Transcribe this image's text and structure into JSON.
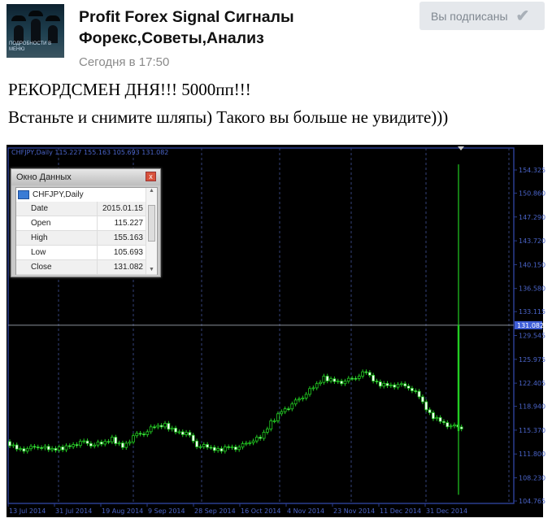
{
  "post": {
    "community_name": "Profit Forex Signal Сигналы Форекс,Советы,Анализ",
    "avatar_caption": "ПОДРОБНОСТИ В МЕНЮ",
    "timestamp": "Сегодня в 17:50",
    "subscribe_button": "Вы подписаны",
    "subscribe_icon": "checkmark-icon",
    "line1": "РЕКОРДСМЕН ДНЯ!!! 5000пп!!!",
    "line2": "Встаньте и снимите шляпы) Такого вы больше не увидите)))"
  },
  "data_window": {
    "title": "Окно Данных",
    "symbol": "CHFJPY,Daily",
    "rows": [
      {
        "k": "Date",
        "v": "2015.01.15"
      },
      {
        "k": "Open",
        "v": "115.227"
      },
      {
        "k": "High",
        "v": "155.163"
      },
      {
        "k": "Low",
        "v": "105.693"
      },
      {
        "k": "Close",
        "v": "131.082"
      }
    ]
  },
  "chart_data": {
    "type": "candlestick",
    "header": "CHFJPY,Daily  115.227 155.163 105.693 131.082",
    "colors": {
      "background": "#000000",
      "candle": "#22cc22",
      "axis": "#2a3d8f",
      "label": "#4a64c8",
      "current_price_bg": "#3f5fd8"
    },
    "ylim": [
      104.765,
      155.9
    ],
    "y_ticks": [
      "154.325",
      "150.860",
      "147.290",
      "143.720",
      "140.150",
      "136.580",
      "133.115",
      "129.545",
      "125.975",
      "122.405",
      "118.940",
      "115.370",
      "111.800",
      "108.230",
      "104.765"
    ],
    "current_price": "131.082",
    "x_ticks": [
      "13 Jul 2014",
      "31 Jul 2014",
      "19 Aug 2014",
      "9 Sep 2014",
      "28 Sep 2014",
      "16 Oct 2014",
      "4 Nov 2014",
      "23 Nov 2014",
      "11 Dec 2014",
      "31 Dec 2014"
    ],
    "closes": [
      113.66,
      112.68,
      112.44,
      113.05,
      112.44,
      112.56,
      113.05,
      113.54,
      113.29,
      113.29,
      114.02,
      112.93,
      114.39,
      115.0,
      115.85,
      116.09,
      115.24,
      114.88,
      113.17,
      112.8,
      112.32,
      112.93,
      112.68,
      113.78,
      114.14,
      116.46,
      118.28,
      119.14,
      120.48,
      121.7,
      123.16,
      122.79,
      122.55,
      123.4,
      124.01,
      122.3,
      122.18,
      122.06,
      121.94,
      120.36,
      117.68,
      116.82,
      115.85
    ],
    "last_candle": {
      "date": "2015.01.15",
      "open": 115.227,
      "high": 155.163,
      "low": 105.693,
      "close": 131.082
    },
    "grid": "vertical dashed"
  }
}
